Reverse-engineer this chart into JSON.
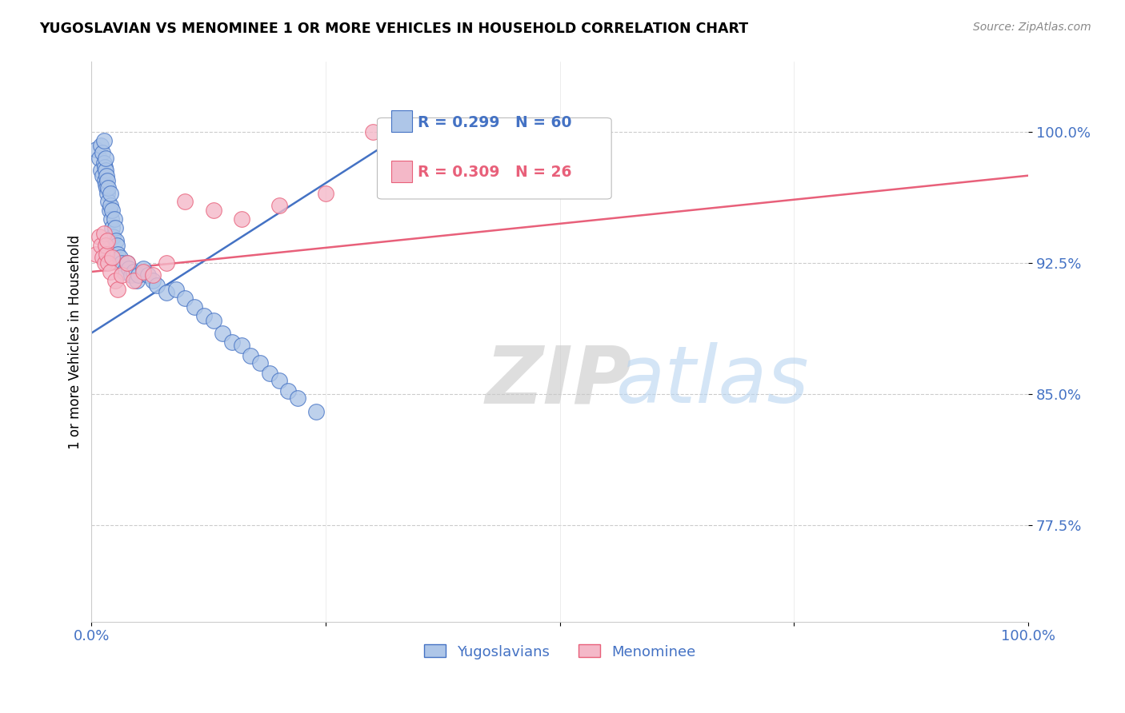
{
  "title": "YUGOSLAVIAN VS MENOMINEE 1 OR MORE VEHICLES IN HOUSEHOLD CORRELATION CHART",
  "source": "Source: ZipAtlas.com",
  "ylabel": "1 or more Vehicles in Household",
  "yticks": [
    0.775,
    0.85,
    0.925,
    1.0
  ],
  "ytick_labels": [
    "77.5%",
    "85.0%",
    "92.5%",
    "100.0%"
  ],
  "xlim": [
    0.0,
    1.0
  ],
  "ylim": [
    0.72,
    1.04
  ],
  "blue_R": 0.299,
  "blue_N": 60,
  "pink_R": 0.309,
  "pink_N": 26,
  "blue_color": "#aec6e8",
  "pink_color": "#f4b8c8",
  "trend_blue": "#4472c4",
  "trend_pink": "#e8607a",
  "legend_label_blue": "Yugoslavians",
  "legend_label_pink": "Menominee",
  "watermark_zip": "ZIP",
  "watermark_atlas": "atlas",
  "blue_x": [
    0.005,
    0.008,
    0.01,
    0.01,
    0.012,
    0.012,
    0.013,
    0.013,
    0.014,
    0.014,
    0.015,
    0.015,
    0.015,
    0.016,
    0.016,
    0.017,
    0.017,
    0.018,
    0.018,
    0.019,
    0.02,
    0.02,
    0.021,
    0.022,
    0.022,
    0.023,
    0.024,
    0.025,
    0.026,
    0.027,
    0.028,
    0.03,
    0.032,
    0.035,
    0.038,
    0.04,
    0.042,
    0.045,
    0.048,
    0.05,
    0.055,
    0.06,
    0.065,
    0.07,
    0.08,
    0.09,
    0.1,
    0.11,
    0.12,
    0.13,
    0.14,
    0.15,
    0.16,
    0.17,
    0.18,
    0.19,
    0.2,
    0.21,
    0.22,
    0.24
  ],
  "blue_y": [
    0.99,
    0.985,
    0.992,
    0.978,
    0.988,
    0.975,
    0.982,
    0.995,
    0.98,
    0.972,
    0.97,
    0.978,
    0.985,
    0.968,
    0.975,
    0.965,
    0.972,
    0.96,
    0.968,
    0.955,
    0.958,
    0.965,
    0.95,
    0.955,
    0.945,
    0.94,
    0.95,
    0.945,
    0.938,
    0.935,
    0.93,
    0.928,
    0.925,
    0.92,
    0.925,
    0.922,
    0.918,
    0.92,
    0.915,
    0.918,
    0.922,
    0.918,
    0.915,
    0.912,
    0.908,
    0.91,
    0.905,
    0.9,
    0.895,
    0.892,
    0.885,
    0.88,
    0.878,
    0.872,
    0.868,
    0.862,
    0.858,
    0.852,
    0.848,
    0.84
  ],
  "pink_x": [
    0.005,
    0.008,
    0.01,
    0.012,
    0.013,
    0.014,
    0.015,
    0.016,
    0.017,
    0.018,
    0.02,
    0.022,
    0.025,
    0.028,
    0.032,
    0.038,
    0.045,
    0.055,
    0.065,
    0.08,
    0.1,
    0.13,
    0.16,
    0.2,
    0.25,
    0.3
  ],
  "pink_y": [
    0.93,
    0.94,
    0.935,
    0.928,
    0.942,
    0.925,
    0.935,
    0.93,
    0.938,
    0.925,
    0.92,
    0.928,
    0.915,
    0.91,
    0.918,
    0.925,
    0.915,
    0.92,
    0.918,
    0.925,
    0.96,
    0.955,
    0.95,
    0.958,
    0.965,
    1.0
  ],
  "blue_trend_x0": 0.0,
  "blue_trend_y0": 0.885,
  "blue_trend_x1": 0.35,
  "blue_trend_y1": 1.005,
  "pink_trend_x0": 0.0,
  "pink_trend_y0": 0.92,
  "pink_trend_x1": 1.0,
  "pink_trend_y1": 0.975
}
